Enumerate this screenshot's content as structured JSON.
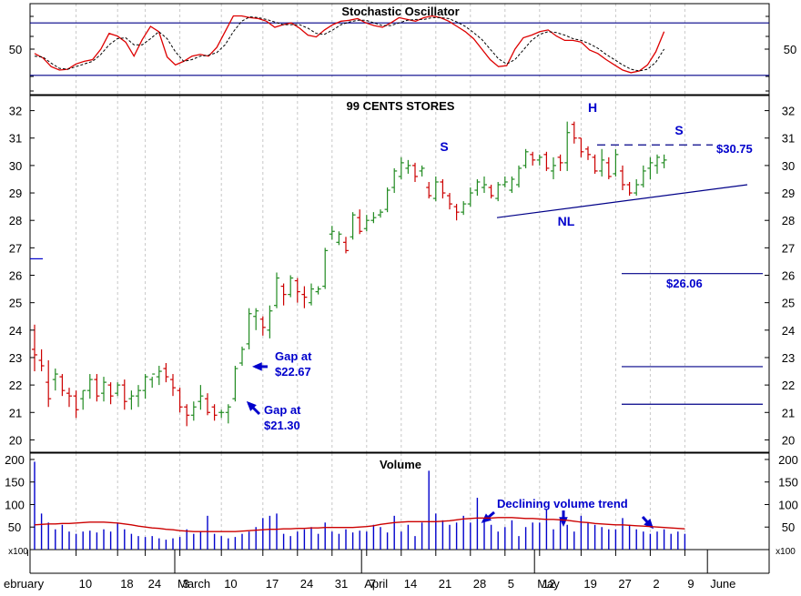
{
  "colors": {
    "up": "#228b22",
    "down": "#cc0000",
    "annotation": "#0000cc",
    "line": "#000088",
    "grid": "#c8c8c8",
    "stoch_k": "#dd0000",
    "stoch_d": "#000000",
    "volume": "#0000cc",
    "volume_ma": "#cc0000"
  },
  "chart_data": [
    {
      "type": "line",
      "title": "Stochastic Oscillator",
      "tick_labels": [
        "50"
      ],
      "ylim": [
        0,
        100
      ],
      "reference_lines": [
        80,
        20
      ],
      "series": [
        {
          "key": "k",
          "values": [
            45,
            40,
            30,
            26,
            27,
            33,
            36,
            38,
            50,
            68,
            65,
            58,
            42,
            61,
            76,
            70,
            41,
            32,
            36,
            42,
            44,
            42,
            52,
            70,
            88,
            88,
            86,
            85,
            82,
            75,
            78,
            80,
            74,
            66,
            64,
            72,
            78,
            82,
            83,
            85,
            80,
            77,
            75,
            80,
            86,
            84,
            82,
            86,
            88,
            86,
            82,
            76,
            70,
            62,
            50,
            38,
            30,
            31,
            50,
            63,
            66,
            70,
            72,
            65,
            60,
            60,
            58,
            49,
            45,
            38,
            32,
            26,
            23,
            25,
            32,
            47,
            70
          ]
        },
        {
          "key": "d",
          "values": [
            42,
            41,
            34,
            28,
            27,
            30,
            33,
            36,
            44,
            55,
            62,
            63,
            55,
            55,
            62,
            70,
            62,
            47,
            36,
            38,
            42,
            43,
            46,
            55,
            70,
            82,
            87,
            86,
            84,
            81,
            78,
            78,
            78,
            74,
            68,
            67,
            72,
            78,
            81,
            83,
            83,
            80,
            77,
            77,
            80,
            83,
            84,
            84,
            86,
            86,
            85,
            81,
            76,
            69,
            61,
            50,
            39,
            33,
            38,
            49,
            60,
            67,
            70,
            69,
            66,
            62,
            60,
            56,
            51,
            44,
            38,
            32,
            27,
            25,
            27,
            35,
            50
          ]
        }
      ]
    },
    {
      "type": "bar",
      "title": "99 CENTS STORES",
      "chart_kind": "ohlc",
      "ylim": [
        19.55,
        32.55
      ],
      "y_ticks": [
        20,
        21,
        22,
        23,
        24,
        25,
        26,
        27,
        28,
        29,
        30,
        31,
        32
      ],
      "x_labels": [
        "ebruary",
        "10",
        "18",
        "24",
        "3",
        "10",
        "17",
        "24",
        "31",
        "7",
        "14",
        "21",
        "28",
        "5",
        "12",
        "19",
        "27",
        "2",
        "9"
      ],
      "month_labels": [
        "March",
        "April",
        "May",
        "June"
      ],
      "ohlc": [
        [
          24.2,
          22.5,
          23.3,
          23.1
        ],
        [
          23.3,
          22.5,
          22.9,
          22.7
        ],
        [
          22.9,
          21.2,
          22.1,
          21.5
        ],
        [
          22.6,
          21.8,
          22.2,
          22.4
        ],
        [
          22.4,
          21.6,
          22.3,
          21.8
        ],
        [
          21.9,
          21.2,
          21.7,
          21.6
        ],
        [
          21.8,
          20.8,
          21.6,
          21.1
        ],
        [
          21.8,
          21.1,
          21.5,
          21.8
        ],
        [
          22.4,
          21.5,
          21.8,
          22.2
        ],
        [
          22.4,
          21.4,
          22.2,
          21.6
        ],
        [
          22.3,
          21.4,
          21.7,
          22.1
        ],
        [
          22.1,
          21.3,
          22.0,
          21.6
        ],
        [
          22.1,
          21.6,
          21.7,
          22.0
        ],
        [
          22.2,
          21.1,
          22.0,
          21.4
        ],
        [
          21.8,
          21.1,
          21.5,
          21.6
        ],
        [
          22.0,
          21.2,
          21.6,
          21.8
        ],
        [
          22.4,
          21.5,
          21.8,
          22.3
        ],
        [
          22.3,
          21.9,
          22.2,
          22.4
        ],
        [
          22.7,
          22.0,
          22.3,
          22.5
        ],
        [
          22.8,
          22.1,
          22.6,
          22.3
        ],
        [
          22.4,
          21.6,
          22.2,
          21.9
        ],
        [
          21.9,
          21.0,
          21.8,
          21.2
        ],
        [
          21.3,
          20.5,
          21.2,
          20.9
        ],
        [
          21.4,
          20.7,
          20.9,
          21.2
        ],
        [
          22.0,
          21.1,
          21.4,
          21.6
        ],
        [
          21.7,
          20.9,
          21.5,
          21.0
        ],
        [
          21.3,
          20.7,
          21.2,
          20.9
        ],
        [
          21.1,
          20.8,
          21.0,
          21.0
        ],
        [
          21.3,
          20.6,
          21.0,
          21.2
        ],
        [
          22.7,
          21.4,
          21.5,
          22.6
        ],
        [
          23.4,
          22.7,
          22.8,
          23.3
        ],
        [
          24.8,
          23.3,
          23.5,
          24.6
        ],
        [
          24.8,
          24.0,
          24.5,
          24.7
        ],
        [
          24.5,
          23.8,
          24.4,
          24.1
        ],
        [
          24.9,
          23.7,
          24.0,
          24.7
        ],
        [
          26.1,
          24.8,
          24.9,
          25.9
        ],
        [
          25.7,
          24.9,
          25.6,
          25.3
        ],
        [
          26.0,
          25.2,
          25.3,
          25.9
        ],
        [
          25.9,
          25.0,
          25.8,
          25.4
        ],
        [
          25.6,
          24.8,
          25.3,
          25.2
        ],
        [
          25.7,
          24.9,
          25.0,
          25.5
        ],
        [
          25.6,
          25.3,
          25.4,
          25.5
        ],
        [
          27.0,
          25.5,
          25.6,
          26.9
        ],
        [
          27.8,
          27.3,
          27.5,
          27.6
        ],
        [
          27.6,
          27.1,
          27.2,
          27.5
        ],
        [
          27.4,
          26.8,
          27.2,
          26.9
        ],
        [
          28.3,
          27.3,
          27.4,
          28.2
        ],
        [
          28.4,
          27.5,
          28.1,
          27.6
        ],
        [
          28.2,
          27.6,
          27.7,
          28.0
        ],
        [
          28.3,
          27.9,
          28.0,
          28.1
        ],
        [
          28.4,
          28.1,
          28.2,
          28.3
        ],
        [
          29.2,
          28.3,
          28.4,
          29.1
        ],
        [
          29.9,
          29.0,
          29.2,
          29.8
        ],
        [
          30.3,
          29.5,
          29.6,
          30.1
        ],
        [
          30.2,
          29.7,
          29.9,
          30.0
        ],
        [
          30.1,
          29.4,
          30.0,
          29.6
        ],
        [
          30.0,
          29.6,
          29.8,
          29.9
        ],
        [
          29.4,
          28.8,
          29.2,
          28.9
        ],
        [
          29.6,
          28.7,
          28.8,
          29.4
        ],
        [
          29.5,
          28.8,
          29.4,
          29.0
        ],
        [
          29.0,
          28.4,
          28.9,
          28.6
        ],
        [
          28.6,
          28.0,
          28.5,
          28.3
        ],
        [
          28.7,
          28.2,
          28.3,
          28.6
        ],
        [
          29.2,
          28.5,
          28.6,
          29.0
        ],
        [
          29.5,
          28.9,
          29.1,
          29.4
        ],
        [
          29.6,
          29.0,
          29.2,
          29.3
        ],
        [
          29.3,
          28.8,
          29.2,
          28.9
        ],
        [
          29.4,
          28.7,
          28.8,
          29.3
        ],
        [
          29.6,
          29.2,
          29.3,
          29.4
        ],
        [
          29.6,
          29.0,
          29.1,
          29.5
        ],
        [
          30.0,
          29.2,
          29.3,
          29.9
        ],
        [
          30.6,
          29.9,
          30.0,
          30.5
        ],
        [
          30.5,
          30.0,
          30.4,
          30.2
        ],
        [
          30.4,
          30.0,
          30.2,
          30.3
        ],
        [
          30.5,
          29.8,
          30.4,
          29.9
        ],
        [
          30.3,
          29.5,
          29.8,
          30.0
        ],
        [
          30.4,
          29.8,
          30.3,
          30.1
        ],
        [
          31.6,
          29.8,
          30.1,
          31.2
        ],
        [
          31.6,
          30.8,
          31.5,
          31.0
        ],
        [
          31.0,
          30.3,
          31.0,
          30.5
        ],
        [
          30.7,
          30.2,
          30.6,
          30.4
        ],
        [
          30.4,
          29.7,
          30.3,
          29.8
        ],
        [
          30.6,
          29.6,
          29.8,
          30.2
        ],
        [
          30.3,
          29.5,
          30.1,
          29.6
        ],
        [
          30.6,
          29.6,
          29.7,
          30.4
        ],
        [
          30.0,
          29.1,
          29.8,
          29.3
        ],
        [
          29.4,
          28.9,
          29.3,
          29.0
        ],
        [
          29.5,
          28.9,
          29.0,
          29.3
        ],
        [
          30.0,
          29.2,
          29.3,
          29.8
        ],
        [
          30.3,
          29.5,
          29.9,
          30.1
        ],
        [
          30.4,
          29.7,
          30.0,
          30.3
        ],
        [
          30.4,
          29.9,
          30.1,
          30.2
        ]
      ],
      "annotations": {
        "gap1": {
          "line1": "Gap at",
          "line2": "$21.30"
        },
        "gap2": {
          "line1": "Gap at",
          "line2": "$22.67"
        },
        "shoulder_left": "S",
        "head": "H",
        "shoulder_right": "S",
        "neckline": "NL",
        "resistance": "$30.75",
        "target": "$26.06"
      },
      "levels": {
        "resistance": 30.75,
        "target": 26.06,
        "gap_high": 22.67,
        "gap_low": 21.3
      }
    },
    {
      "type": "bar",
      "title": "Volume",
      "unit_label": "x100",
      "ylim": [
        0,
        210
      ],
      "y_ticks": [
        50,
        100,
        150,
        200
      ],
      "values": [
        195,
        80,
        60,
        45,
        55,
        40,
        35,
        40,
        42,
        38,
        45,
        40,
        60,
        45,
        35,
        30,
        28,
        30,
        25,
        22,
        25,
        28,
        45,
        35,
        40,
        75,
        35,
        30,
        25,
        28,
        35,
        40,
        50,
        70,
        75,
        80,
        35,
        30,
        40,
        45,
        50,
        35,
        60,
        40,
        35,
        45,
        38,
        42,
        40,
        55,
        50,
        38,
        75,
        40,
        55,
        30,
        60,
        175,
        80,
        65,
        55,
        60,
        75,
        60,
        115,
        65,
        55,
        40,
        50,
        65,
        30,
        50,
        60,
        60,
        90,
        45,
        70,
        55,
        40,
        75,
        60,
        55,
        50,
        45,
        45,
        70,
        55,
        45,
        40,
        35,
        40,
        45,
        35,
        40,
        35
      ],
      "ma": [
        55,
        56,
        57,
        57,
        58,
        58,
        59,
        60,
        61,
        61,
        61,
        60,
        59,
        57,
        55,
        52,
        50,
        48,
        47,
        45,
        44,
        42,
        41,
        40,
        40,
        40,
        40,
        40,
        40,
        40,
        41,
        42,
        43,
        44,
        45,
        45,
        46,
        46,
        47,
        47,
        48,
        48,
        49,
        49,
        49,
        49,
        49,
        50,
        51,
        53,
        56,
        58,
        60,
        61,
        62,
        62,
        62,
        62,
        62,
        63,
        64,
        66,
        68,
        69,
        70,
        70,
        70,
        71,
        71,
        71,
        70,
        69,
        69,
        68,
        67,
        67,
        66,
        65,
        63,
        61,
        60,
        58,
        57,
        56,
        55,
        55,
        54,
        53,
        52,
        51,
        50,
        49,
        48,
        47,
        46
      ],
      "annotation": "Declining volume trend"
    }
  ]
}
